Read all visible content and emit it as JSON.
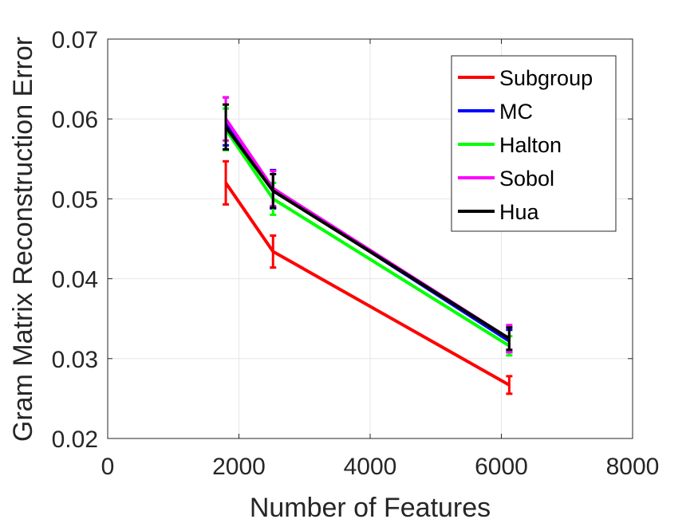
{
  "chart_data": {
    "type": "line",
    "xlabel": "Number of Features",
    "ylabel": "Gram Matrix Reconstruction Error",
    "xlim": [
      0,
      8000
    ],
    "ylim": [
      0.02,
      0.07
    ],
    "xticks": [
      0,
      2000,
      4000,
      6000,
      8000
    ],
    "xtick_labels": [
      "0",
      "2000",
      "4000",
      "6000",
      "8000"
    ],
    "yticks": [
      0.02,
      0.03,
      0.04,
      0.05,
      0.06,
      0.07
    ],
    "ytick_labels": [
      "0.02",
      "0.03",
      "0.04",
      "0.05",
      "0.06",
      "0.07"
    ],
    "grid": true,
    "legend_position": "top-right",
    "x": [
      1800,
      2520,
      6120
    ],
    "series": [
      {
        "name": "Subgroup",
        "color": "#ff0000",
        "values": [
          0.052,
          0.0434,
          0.0267
        ],
        "errors": [
          0.0027,
          0.002,
          0.0011
        ]
      },
      {
        "name": "MC",
        "color": "#0000ff",
        "values": [
          0.0597,
          0.0512,
          0.0322
        ],
        "errors": [
          0.003,
          0.0024,
          0.0014
        ]
      },
      {
        "name": "Halton",
        "color": "#00ff00",
        "values": [
          0.0587,
          0.05,
          0.0316
        ],
        "errors": [
          0.0026,
          0.002,
          0.0012
        ]
      },
      {
        "name": "Sobol",
        "color": "#ff00ff",
        "values": [
          0.06,
          0.0513,
          0.0325
        ],
        "errors": [
          0.0027,
          0.0022,
          0.0017
        ]
      },
      {
        "name": "Hua",
        "color": "#000000",
        "values": [
          0.059,
          0.051,
          0.0325
        ],
        "errors": [
          0.0028,
          0.0021,
          0.0014
        ]
      }
    ]
  }
}
